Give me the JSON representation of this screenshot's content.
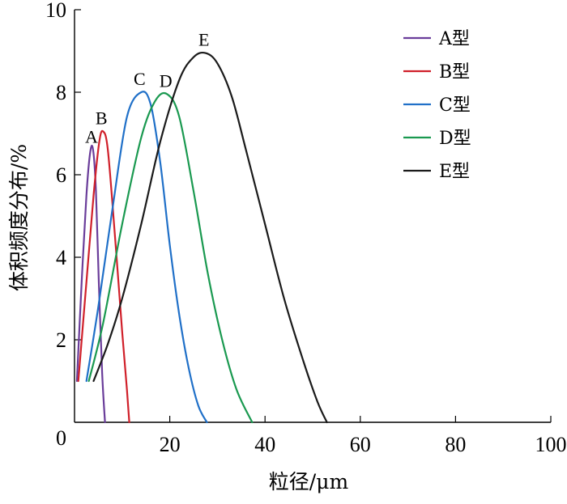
{
  "chart_data": {
    "type": "line",
    "xlabel": "粒径/μm",
    "ylabel": "体积频度分布/%",
    "xlim": [
      0,
      100
    ],
    "ylim": [
      0,
      10
    ],
    "xticks": [
      0,
      20,
      40,
      60,
      80,
      100
    ],
    "yticks": [
      2,
      4,
      6,
      8,
      10
    ],
    "origin_label": "0",
    "legend_position": "top-right",
    "series": [
      {
        "name": "A型",
        "peak_label": "A",
        "color": "#6a3d9a",
        "x": [
          0.5,
          1.5,
          2.5,
          3.3,
          3.9,
          4.5,
          5.1,
          5.8,
          6.4
        ],
        "y": [
          1.0,
          3.4,
          5.5,
          6.55,
          6.6,
          5.6,
          3.4,
          1.2,
          0
        ]
      },
      {
        "name": "B型",
        "peak_label": "B",
        "color": "#d0202a",
        "x": [
          0.8,
          2.5,
          4.0,
          5.2,
          6.0,
          7.0,
          8.5,
          10.0,
          11.0,
          11.5
        ],
        "y": [
          1.0,
          3.4,
          5.5,
          6.8,
          7.05,
          6.6,
          4.5,
          2.2,
          0.8,
          0
        ]
      },
      {
        "name": "C型",
        "peak_label": "C",
        "color": "#2070c8",
        "x": [
          2.5,
          5,
          8,
          11,
          14,
          16,
          18,
          20,
          22,
          24,
          26,
          27.8
        ],
        "y": [
          1.0,
          2.8,
          5.2,
          7.4,
          8.0,
          7.7,
          6.3,
          4.3,
          2.6,
          1.3,
          0.4,
          0
        ]
      },
      {
        "name": "D型",
        "peak_label": "D",
        "color": "#1a9950",
        "x": [
          3,
          6,
          10,
          14,
          17,
          19.5,
          22,
          25,
          28,
          31,
          34,
          37.3
        ],
        "y": [
          1.0,
          2.4,
          4.8,
          6.9,
          7.8,
          7.95,
          7.4,
          5.6,
          3.6,
          2.0,
          0.8,
          0
        ]
      },
      {
        "name": "E型",
        "peak_label": "E",
        "color": "#1a1a1a",
        "x": [
          4,
          7,
          10,
          14,
          18,
          22,
          25,
          27.5,
          30,
          33,
          36,
          40,
          44,
          48,
          51,
          53
        ],
        "y": [
          1.0,
          1.9,
          3.0,
          4.8,
          6.8,
          8.3,
          8.85,
          8.95,
          8.7,
          7.9,
          6.6,
          4.8,
          3.0,
          1.5,
          0.5,
          0
        ]
      }
    ]
  }
}
